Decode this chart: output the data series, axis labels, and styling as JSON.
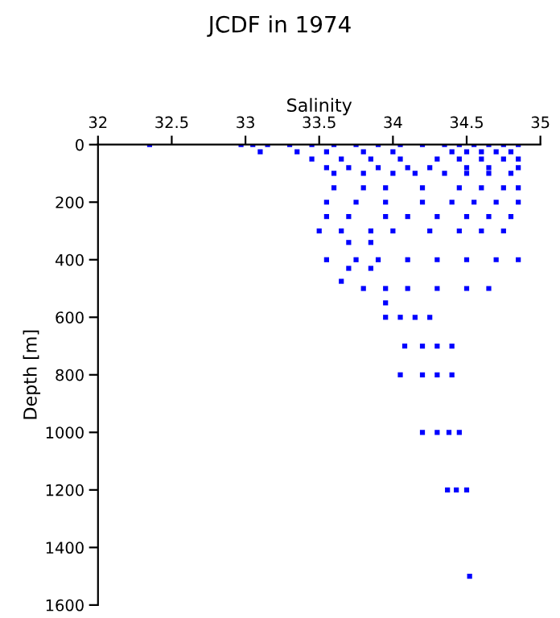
{
  "chart_data": {
    "type": "scatter",
    "title": "JCDF in 1974",
    "xlabel": "Salinity",
    "ylabel": "Depth [m]",
    "xlim": [
      32,
      35
    ],
    "xticks": [
      32,
      32.5,
      33,
      33.5,
      34,
      34.5,
      35
    ],
    "ylim": [
      1600,
      0
    ],
    "yticks": [
      0,
      200,
      400,
      600,
      800,
      1000,
      1200,
      1400,
      1600
    ],
    "grid": false,
    "marker": "square",
    "series": [
      {
        "color": "#0000ff",
        "x": [
          32.35,
          32.97,
          33.05,
          33.15,
          33.3,
          33.45,
          33.6,
          33.75,
          33.9,
          34.05,
          34.2,
          34.35,
          34.45,
          34.55,
          34.65,
          34.75,
          34.85,
          33.1,
          33.35,
          33.55,
          33.8,
          34.0,
          34.4,
          34.5,
          34.6,
          34.7,
          34.8,
          33.45,
          33.65,
          33.85,
          34.05,
          34.3,
          34.45,
          34.6,
          34.75,
          34.85,
          33.55,
          33.7,
          33.9,
          34.1,
          34.25,
          34.5,
          34.65,
          34.85,
          33.6,
          33.8,
          34.0,
          34.15,
          34.35,
          34.5,
          34.65,
          34.8,
          33.6,
          33.8,
          33.95,
          34.2,
          34.45,
          34.6,
          34.75,
          34.85,
          33.55,
          33.75,
          33.95,
          34.2,
          34.4,
          34.55,
          34.7,
          34.85,
          33.55,
          33.7,
          33.95,
          34.1,
          34.3,
          34.5,
          34.65,
          34.8,
          33.5,
          33.65,
          33.85,
          34.0,
          34.25,
          34.45,
          34.6,
          34.75,
          33.7,
          33.85,
          33.55,
          33.75,
          33.9,
          34.1,
          34.3,
          34.5,
          34.7,
          34.85,
          33.7,
          33.85,
          33.65,
          33.8,
          33.95,
          34.1,
          34.3,
          34.5,
          34.65,
          33.95,
          33.95,
          34.05,
          34.15,
          34.25,
          34.08,
          34.2,
          34.3,
          34.4,
          34.05,
          34.2,
          34.3,
          34.4,
          34.2,
          34.3,
          34.38,
          34.45,
          34.37,
          34.43,
          34.5,
          34.52
        ],
        "values": [
          0,
          0,
          0,
          0,
          0,
          0,
          0,
          0,
          0,
          0,
          0,
          0,
          0,
          0,
          0,
          0,
          0,
          25,
          25,
          25,
          25,
          25,
          25,
          25,
          25,
          25,
          25,
          50,
          50,
          50,
          50,
          50,
          50,
          50,
          50,
          50,
          80,
          80,
          80,
          80,
          80,
          80,
          80,
          80,
          100,
          100,
          100,
          100,
          100,
          100,
          100,
          100,
          150,
          150,
          150,
          150,
          150,
          150,
          150,
          150,
          200,
          200,
          200,
          200,
          200,
          200,
          200,
          200,
          250,
          250,
          250,
          250,
          250,
          250,
          250,
          250,
          300,
          300,
          300,
          300,
          300,
          300,
          300,
          300,
          340,
          340,
          400,
          400,
          400,
          400,
          400,
          400,
          400,
          400,
          430,
          430,
          475,
          500,
          500,
          500,
          500,
          500,
          500,
          550,
          600,
          600,
          600,
          600,
          700,
          700,
          700,
          700,
          800,
          800,
          800,
          800,
          1000,
          1000,
          1000,
          1000,
          1200,
          1200,
          1200,
          1500
        ]
      }
    ]
  }
}
